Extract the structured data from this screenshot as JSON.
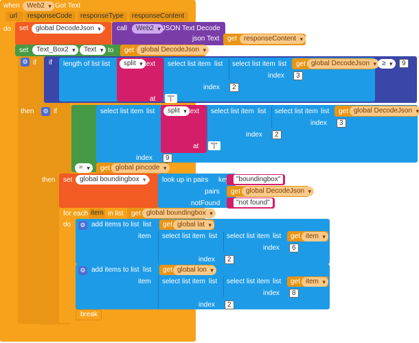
{
  "event": {
    "when": "when",
    "component": "Web2",
    "event": "Got Text",
    "params": [
      "url",
      "responseCode",
      "responseType",
      "responseContent"
    ],
    "do": "do"
  },
  "kw": {
    "set": "set",
    "to": "to",
    "call": "call",
    "get": "get",
    "if": "if",
    "then": "then",
    "at": "at",
    "index": "index",
    "item": "item",
    "list": "list",
    "text": "text",
    "key": "key",
    "pairs": "pairs",
    "notFound": "notFound",
    "foreach": "for each",
    "inlist": "in list",
    "break": "break"
  },
  "s1": {
    "var": "global DecodeJson",
    "comp": "Web2",
    "method": ".JSON Text Decode",
    "param": "json Text",
    "value": "responseContent"
  },
  "s2": {
    "comp": "Text_Box2",
    "prop": "Text",
    "value": "global DecodeJson"
  },
  "cond1": {
    "length": "length of list",
    "split": "split",
    "select": "select list item",
    "var": "global DecodeJson",
    "idx1": "3",
    "idx2": "2",
    "sep": "\"|\"",
    "op": "≥",
    "n": "9"
  },
  "cond2": {
    "split": "split",
    "select": "select list item",
    "var": "global DecodeJson",
    "idx1": "3",
    "idx2": "2",
    "sep": "\"|\"",
    "idx3": "9",
    "op": "=",
    "cmp": "global pincode"
  },
  "s3": {
    "var": "global boundingbox",
    "lookup": "look up in pairs",
    "key": "\"boundingbox\"",
    "pairs": "global DecodeJson",
    "notfound": "\"not found\""
  },
  "loop": {
    "var": "item",
    "list": "global boundingbox",
    "add": "add items to list",
    "lat": "global lat",
    "lon": "global lon",
    "get_item": "item",
    "idx_lat": "6",
    "idx_lon": "8",
    "idx2": "2"
  }
}
